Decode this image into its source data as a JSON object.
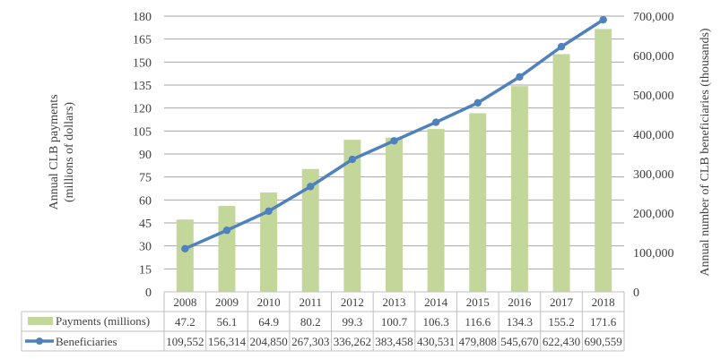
{
  "chart_data": {
    "type": "bar",
    "categories": [
      "2008",
      "2009",
      "2010",
      "2011",
      "2012",
      "2013",
      "2014",
      "2015",
      "2016",
      "2017",
      "2018"
    ],
    "series": [
      {
        "name": "Payments (millions)",
        "type": "bar",
        "axis": "left",
        "values": [
          47.2,
          56.1,
          64.9,
          80.2,
          99.3,
          100.7,
          106.3,
          116.6,
          134.3,
          155.2,
          171.6
        ],
        "labels": [
          "47.2",
          "56.1",
          "64.9",
          "80.2",
          "99.3",
          "100.7",
          "106.3",
          "116.6",
          "134.3",
          "155.2",
          "171.6"
        ]
      },
      {
        "name": "Beneficiaries",
        "type": "line",
        "axis": "right",
        "values": [
          109552,
          156314,
          204850,
          267303,
          336262,
          383458,
          430531,
          479808,
          545670,
          622430,
          690559
        ],
        "labels": [
          "109,552",
          "156,314",
          "204,850",
          "267,303",
          "336,262",
          "383,458",
          "430,531",
          "479,808",
          "545,670",
          "622,430",
          "690,559"
        ]
      }
    ],
    "ylabel": [
      "Annual CLB payments",
      "(millions of dollars)"
    ],
    "y2label": "Annual number of CLB beneficiaries (thousands)",
    "ylim": [
      0,
      180
    ],
    "y2lim": [
      0,
      700000
    ],
    "yticks": [
      "0",
      "15",
      "30",
      "45",
      "60",
      "75",
      "90",
      "105",
      "120",
      "135",
      "150",
      "165",
      "180"
    ],
    "y2ticks": [
      "0",
      "100,000",
      "200,000",
      "300,000",
      "400,000",
      "500,000",
      "600,000",
      "700,000"
    ],
    "grid": true,
    "legend": "data-table",
    "colors": {
      "bar": "#c4d79b",
      "line": "#4f81bd",
      "grid": "#a6a6a6",
      "text": "#404040",
      "table_border": "#bfbfbf"
    }
  }
}
